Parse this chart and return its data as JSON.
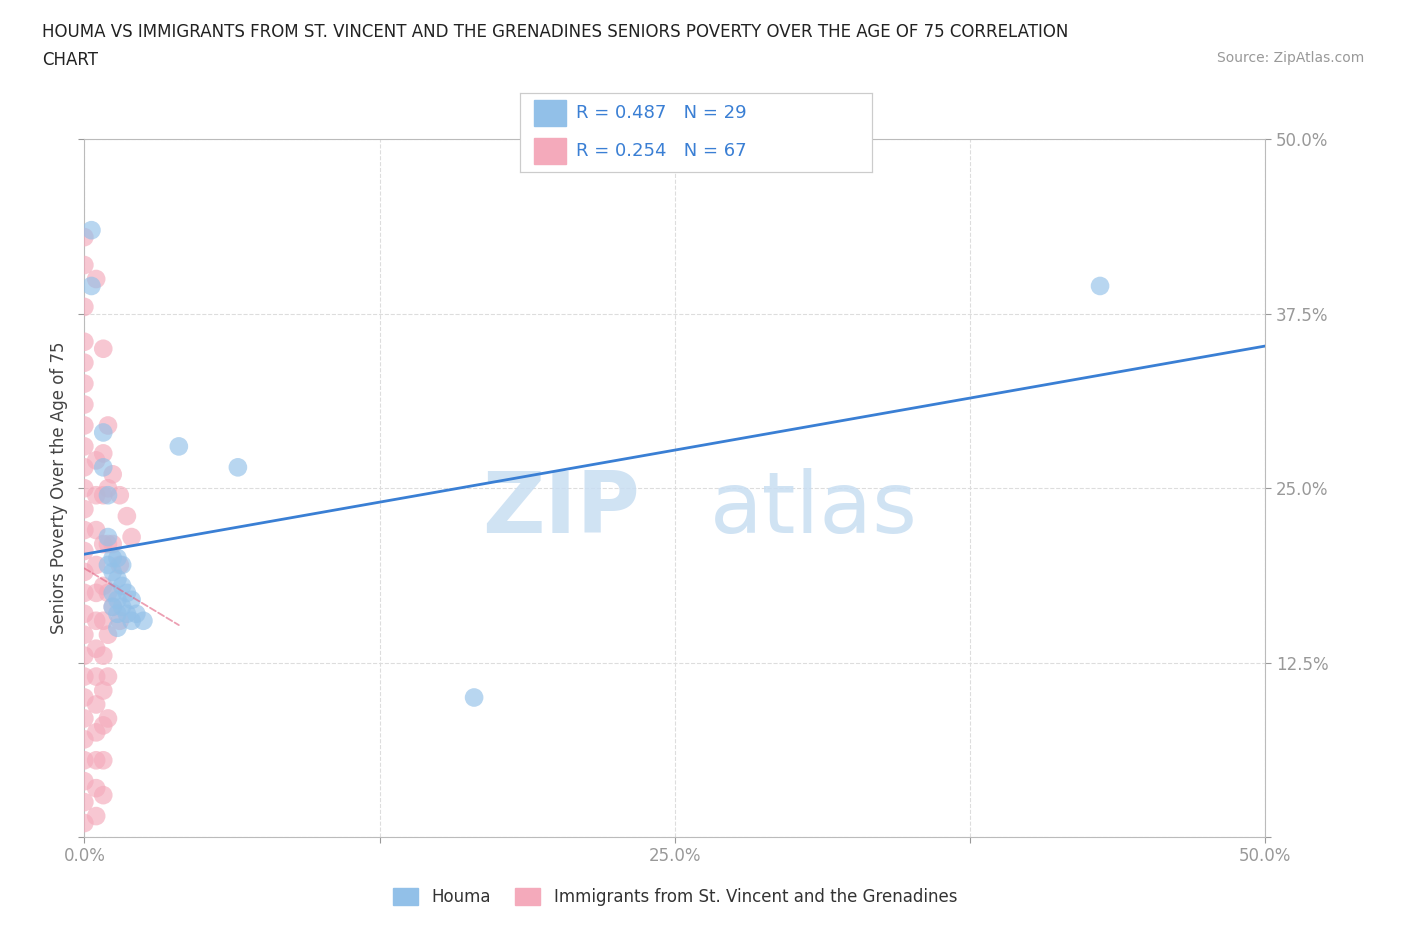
{
  "title_line1": "HOUMA VS IMMIGRANTS FROM ST. VINCENT AND THE GRENADINES SENIORS POVERTY OVER THE AGE OF 75 CORRELATION",
  "title_line2": "CHART",
  "source": "Source: ZipAtlas.com",
  "ylabel": "Seniors Poverty Over the Age of 75",
  "xlim": [
    0.0,
    0.5
  ],
  "ylim": [
    0.0,
    0.5
  ],
  "xticks": [
    0.0,
    0.125,
    0.25,
    0.375,
    0.5
  ],
  "yticks": [
    0.125,
    0.25,
    0.375,
    0.5
  ],
  "xticklabels": [
    "0.0%",
    "",
    "25.0%",
    "",
    "50.0%"
  ],
  "yticklabels_right": [
    "12.5%",
    "25.0%",
    "37.5%",
    "50.0%"
  ],
  "houma_color": "#92C0E8",
  "immigrants_color": "#F4AABB",
  "houma_R": 0.487,
  "houma_N": 29,
  "immigrants_R": 0.254,
  "immigrants_N": 67,
  "legend_labels": [
    "Houma",
    "Immigrants from St. Vincent and the Grenadines"
  ],
  "houma_scatter": [
    [
      0.003,
      0.435
    ],
    [
      0.003,
      0.395
    ],
    [
      0.008,
      0.29
    ],
    [
      0.008,
      0.265
    ],
    [
      0.01,
      0.245
    ],
    [
      0.01,
      0.215
    ],
    [
      0.01,
      0.195
    ],
    [
      0.012,
      0.2
    ],
    [
      0.012,
      0.19
    ],
    [
      0.012,
      0.175
    ],
    [
      0.012,
      0.165
    ],
    [
      0.014,
      0.2
    ],
    [
      0.014,
      0.185
    ],
    [
      0.014,
      0.17
    ],
    [
      0.014,
      0.16
    ],
    [
      0.014,
      0.15
    ],
    [
      0.016,
      0.195
    ],
    [
      0.016,
      0.18
    ],
    [
      0.016,
      0.165
    ],
    [
      0.018,
      0.175
    ],
    [
      0.018,
      0.16
    ],
    [
      0.02,
      0.17
    ],
    [
      0.02,
      0.155
    ],
    [
      0.022,
      0.16
    ],
    [
      0.025,
      0.155
    ],
    [
      0.04,
      0.28
    ],
    [
      0.065,
      0.265
    ],
    [
      0.165,
      0.1
    ],
    [
      0.43,
      0.395
    ]
  ],
  "immigrants_scatter": [
    [
      0.0,
      0.43
    ],
    [
      0.0,
      0.41
    ],
    [
      0.0,
      0.38
    ],
    [
      0.0,
      0.355
    ],
    [
      0.0,
      0.34
    ],
    [
      0.0,
      0.325
    ],
    [
      0.0,
      0.31
    ],
    [
      0.0,
      0.295
    ],
    [
      0.0,
      0.28
    ],
    [
      0.0,
      0.265
    ],
    [
      0.0,
      0.25
    ],
    [
      0.0,
      0.235
    ],
    [
      0.0,
      0.22
    ],
    [
      0.0,
      0.205
    ],
    [
      0.0,
      0.19
    ],
    [
      0.0,
      0.175
    ],
    [
      0.0,
      0.16
    ],
    [
      0.0,
      0.145
    ],
    [
      0.0,
      0.13
    ],
    [
      0.0,
      0.115
    ],
    [
      0.0,
      0.1
    ],
    [
      0.0,
      0.085
    ],
    [
      0.0,
      0.07
    ],
    [
      0.0,
      0.055
    ],
    [
      0.0,
      0.04
    ],
    [
      0.0,
      0.025
    ],
    [
      0.0,
      0.01
    ],
    [
      0.005,
      0.4
    ],
    [
      0.005,
      0.27
    ],
    [
      0.005,
      0.245
    ],
    [
      0.005,
      0.22
    ],
    [
      0.005,
      0.195
    ],
    [
      0.005,
      0.175
    ],
    [
      0.005,
      0.155
    ],
    [
      0.005,
      0.135
    ],
    [
      0.005,
      0.115
    ],
    [
      0.005,
      0.095
    ],
    [
      0.005,
      0.075
    ],
    [
      0.005,
      0.055
    ],
    [
      0.005,
      0.035
    ],
    [
      0.005,
      0.015
    ],
    [
      0.008,
      0.35
    ],
    [
      0.008,
      0.275
    ],
    [
      0.008,
      0.245
    ],
    [
      0.008,
      0.21
    ],
    [
      0.008,
      0.18
    ],
    [
      0.008,
      0.155
    ],
    [
      0.008,
      0.13
    ],
    [
      0.008,
      0.105
    ],
    [
      0.008,
      0.08
    ],
    [
      0.008,
      0.055
    ],
    [
      0.008,
      0.03
    ],
    [
      0.01,
      0.295
    ],
    [
      0.01,
      0.25
    ],
    [
      0.01,
      0.21
    ],
    [
      0.01,
      0.175
    ],
    [
      0.01,
      0.145
    ],
    [
      0.01,
      0.115
    ],
    [
      0.01,
      0.085
    ],
    [
      0.012,
      0.26
    ],
    [
      0.012,
      0.21
    ],
    [
      0.012,
      0.165
    ],
    [
      0.015,
      0.245
    ],
    [
      0.015,
      0.195
    ],
    [
      0.015,
      0.155
    ],
    [
      0.018,
      0.23
    ],
    [
      0.02,
      0.215
    ]
  ],
  "houma_line_color": "#3A7FD4",
  "immigrants_line_color": "#E06080",
  "background_color": "#FFFFFF",
  "grid_color": "#DDDDDD"
}
